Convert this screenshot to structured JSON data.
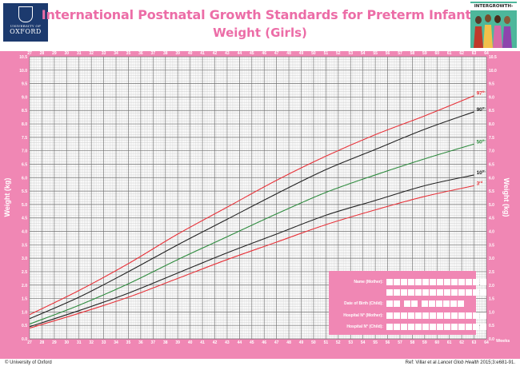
{
  "header": {
    "title_line1": "International Postnatal Growth Standards for Preterm Infants",
    "title_line2": "Weight (Girls)",
    "oxford_small": "UNIVERSITY OF",
    "oxford_word": "OXFORD",
    "ig_label": "INTERGROWTH-21st"
  },
  "footer": {
    "left": "© University of Oxford",
    "right_prefix": "Ref: Villar et al ",
    "right_journal": "Lancet Glob Health",
    "right_suffix": " 2015;3:e681-91."
  },
  "info": {
    "fields": [
      {
        "label": "Name (Mother):",
        "boxes": 14
      },
      {
        "label": "",
        "boxes": 14
      },
      {
        "label": "Date of Birth (Child):",
        "boxes": 10
      },
      {
        "label": "Hospital N° (Mother):",
        "boxes": 14
      },
      {
        "label": "Hospital N° (Child):",
        "boxes": 14
      }
    ]
  },
  "colors": {
    "pink": "#f087b4",
    "title_pink": "#ec6da7",
    "red": "#e8333a",
    "black": "#222222",
    "green": "#2e8b3e",
    "grid_major": "#6e6e6e",
    "grid_minor": "#c8c8c8"
  },
  "chart_data": {
    "type": "line",
    "title": "International Postnatal Growth Standards for Preterm Infants Weight (Girls)",
    "xlabel": "Weeks",
    "ylabel": "Weight (kg)",
    "xlim": [
      27,
      64
    ],
    "ylim": [
      0,
      10.5
    ],
    "x_ticks": [
      "27",
      "28",
      "29",
      "30",
      "31",
      "32",
      "33",
      "34",
      "35",
      "36",
      "37",
      "38",
      "39",
      "40",
      "41",
      "42",
      "43",
      "44",
      "45",
      "46",
      "47",
      "48",
      "49",
      "50",
      "51",
      "52",
      "53",
      "54",
      "55",
      "56",
      "57",
      "58",
      "59",
      "60",
      "61",
      "62",
      "63",
      "64"
    ],
    "y_ticks": [
      "0.0",
      "0.5",
      "1.0",
      "1.5",
      "2.0",
      "2.5",
      "3.0",
      "3.5",
      "4.0",
      "4.5",
      "5.0",
      "5.5",
      "6.0",
      "6.5",
      "7.0",
      "7.5",
      "8.0",
      "8.5",
      "9.0",
      "9.5",
      "10.0",
      "10.5"
    ],
    "grid": true,
    "x": [
      27,
      31,
      35,
      39,
      43,
      47,
      51,
      55,
      59,
      63
    ],
    "series": [
      {
        "name": "97th",
        "label_main": "97",
        "label_sup": "th",
        "color": "#e8333a",
        "values": [
          0.9,
          1.8,
          2.8,
          3.9,
          4.9,
          5.9,
          6.8,
          7.6,
          8.3,
          9.05
        ]
      },
      {
        "name": "90th",
        "label_main": "90",
        "label_sup": "th",
        "color": "#222222",
        "values": [
          0.75,
          1.55,
          2.5,
          3.5,
          4.45,
          5.4,
          6.3,
          7.05,
          7.8,
          8.45
        ]
      },
      {
        "name": "50th",
        "label_main": "50",
        "label_sup": "th",
        "color": "#2e8b3e",
        "values": [
          0.55,
          1.25,
          2.05,
          2.95,
          3.8,
          4.65,
          5.45,
          6.1,
          6.7,
          7.25
        ]
      },
      {
        "name": "10th",
        "label_main": "10",
        "label_sup": "th",
        "color": "#222222",
        "values": [
          0.45,
          1.05,
          1.7,
          2.45,
          3.2,
          3.9,
          4.6,
          5.15,
          5.7,
          6.1
        ]
      },
      {
        "name": "3rd",
        "label_main": "3",
        "label_sup": "rd",
        "color": "#e8333a",
        "values": [
          0.4,
          0.95,
          1.55,
          2.25,
          2.95,
          3.6,
          4.25,
          4.8,
          5.3,
          5.7
        ]
      }
    ]
  }
}
